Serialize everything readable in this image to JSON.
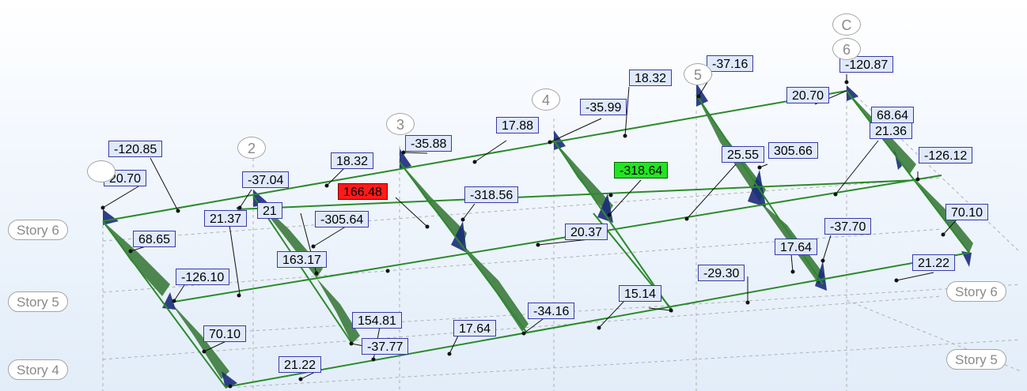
{
  "viewport_label": "3D view - beam moment diagram",
  "colors": {
    "beam": "#2b8a2b",
    "diagram_fill": "#3c7a3c",
    "diagram_neg": "#1b2b7a",
    "grid": "#b0b0b0",
    "label_fill": "#dfe9fb",
    "label_border": "#3a3aa8",
    "max_fill": "#ff1a1a",
    "min_fill": "#22e522"
  },
  "story_labels": [
    "Story 6",
    "Story 5",
    "Story 4",
    "Story 6",
    "Story 5"
  ],
  "grid_bubbles": [
    "C",
    "6",
    "5",
    "4",
    "3",
    "2",
    ""
  ],
  "values": [
    "-120.85",
    "20.70",
    "-37.04",
    "18.32",
    "-35.88",
    "17.88",
    "-35.99",
    "18.32",
    "-37.16",
    "-120.87",
    "20.70",
    "68.64",
    "21.36",
    "-126.12",
    "305.66",
    "25.55",
    "-318.64",
    "166.48",
    "-318.56",
    "21.37",
    "21",
    "-305.64",
    "163.17",
    "68.65",
    "-126.10",
    "20.37",
    "70.10",
    "-37.70",
    "17.64",
    "-29.30",
    "21.22",
    "15.14",
    "-34.16",
    "17.64",
    "154.81",
    "-37.77",
    "70.10",
    "21.22"
  ],
  "highlight": {
    "max_value": "166.48",
    "min_value": "-318.64"
  }
}
